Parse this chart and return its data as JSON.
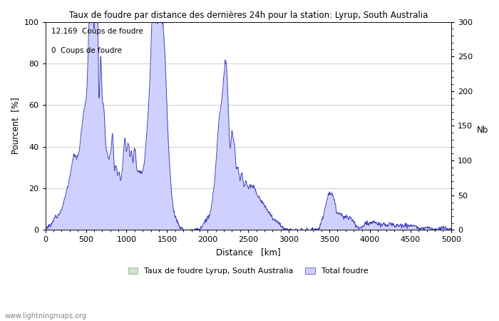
{
  "title": "Taux de foudre par distance des dernières 24h pour la station: Lyrup, South Australia",
  "xlabel": "Distance   [km]",
  "ylabel_left": "Pourcent  [%]",
  "ylabel_right": "Nb",
  "annotation_line1": "12.169  Coups de foudre",
  "annotation_line2": "0  Coups de foudre",
  "legend_green": "Taux de foudre Lyrup, South Australia",
  "legend_blue": "Total foudre",
  "watermark": "www.lightningmaps.org",
  "xlim": [
    0,
    5000
  ],
  "ylim_left": [
    0,
    100
  ],
  "ylim_right": [
    0,
    300
  ],
  "fill_color_blue": "#d0d0ff",
  "line_color": "#4444bb",
  "fill_color_green": "#c8e8c8",
  "background_color": "#ffffff",
  "grid_color": "#bbbbbb"
}
